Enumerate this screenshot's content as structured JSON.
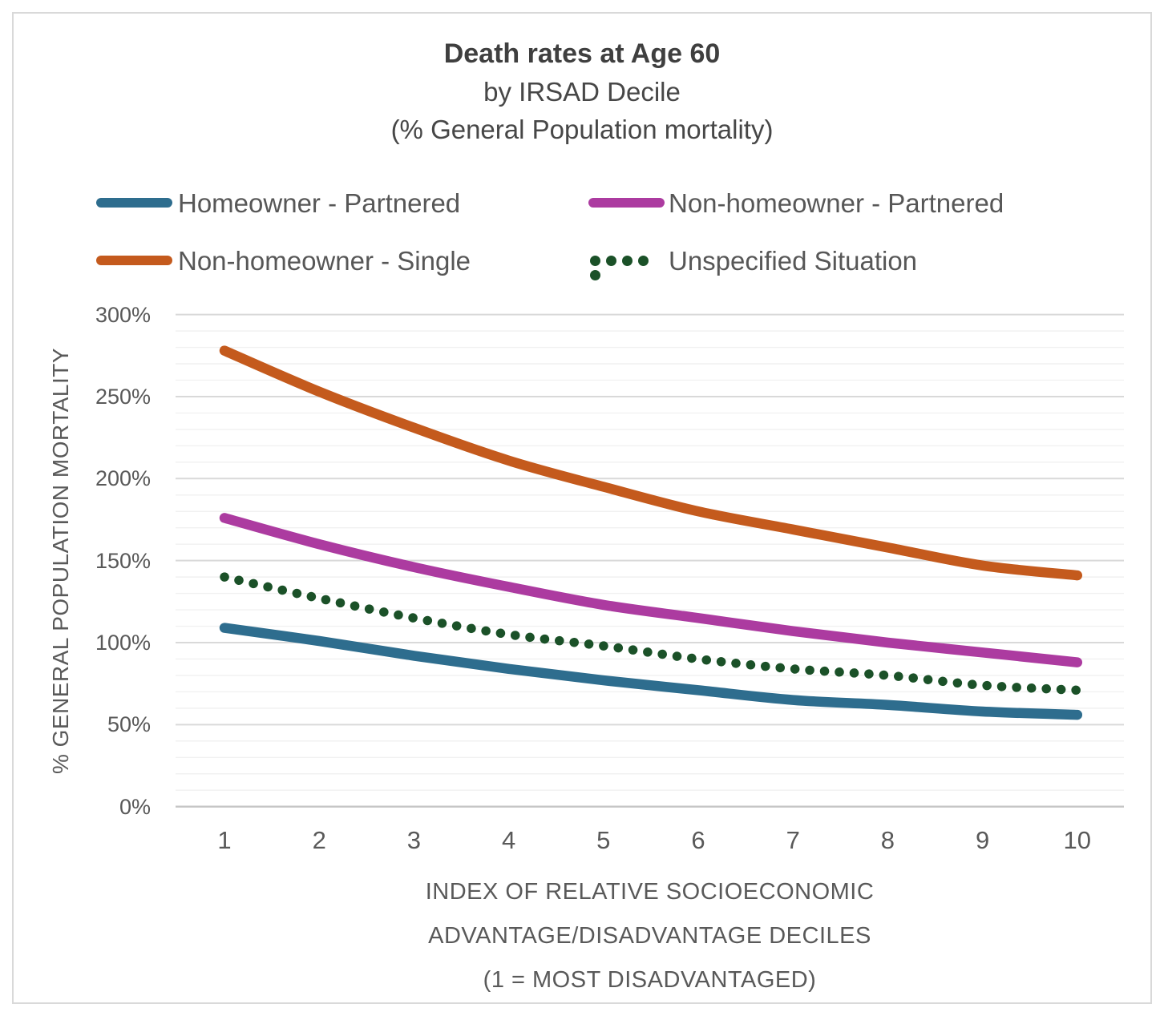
{
  "header": {
    "title": "Death rates at Age 60",
    "subtitle1": "by IRSAD Decile",
    "subtitle2": "(% General Population mortality)"
  },
  "legend": {
    "items": [
      {
        "label": "Homeowner - Partnered",
        "color": "#2E6D8E",
        "style": "solid"
      },
      {
        "label": "Non-homeowner - Partnered",
        "color": "#AC3BA0",
        "style": "solid"
      },
      {
        "label": "Non-homeowner - Single",
        "color": "#C45A1D",
        "style": "solid"
      },
      {
        "label": "Unspecified Situation",
        "color": "#1B5128",
        "style": "dotted"
      }
    ]
  },
  "y_axis_title": "% GENERAL POPULATION MORTALITY",
  "x_axis_title_lines": [
    "INDEX OF RELATIVE SOCIOECONOMIC",
    "ADVANTAGE/DISADVANTAGE DECILES",
    "(1 = MOST DISADVANTAGED)"
  ],
  "chart_data": {
    "type": "line",
    "title": "Death rates at Age 60 by IRSAD Decile (% General Population mortality)",
    "xlabel": "INDEX OF RELATIVE SOCIOECONOMIC ADVANTAGE/DISADVANTAGE DECILES (1 = MOST DISADVANTAGED)",
    "ylabel": "% GENERAL POPULATION MORTALITY",
    "x": [
      1,
      2,
      3,
      4,
      5,
      6,
      7,
      8,
      9,
      10
    ],
    "x_tick_labels": [
      "1",
      "2",
      "3",
      "4",
      "5",
      "6",
      "7",
      "8",
      "9",
      "10"
    ],
    "ylim": [
      0,
      300
    ],
    "y_unit": "percent",
    "y_major_step": 50,
    "y_minor_step": 10,
    "y_tick_labels": [
      "0%",
      "50%",
      "100%",
      "150%",
      "200%",
      "250%",
      "300%"
    ],
    "grid": true,
    "legend_position": "top",
    "line_shape": "smoothed",
    "series": [
      {
        "name": "Homeowner - Partnered",
        "color": "#2E6D8E",
        "style": "solid",
        "values": [
          109,
          101,
          92,
          84,
          77,
          71,
          65,
          62,
          58,
          56
        ]
      },
      {
        "name": "Non-homeowner - Partnered",
        "color": "#AC3BA0",
        "style": "solid",
        "values": [
          176,
          160,
          146,
          134,
          123,
          115,
          107,
          100,
          94,
          88
        ]
      },
      {
        "name": "Non-homeowner - Single",
        "color": "#C45A1D",
        "style": "solid",
        "values": [
          278,
          253,
          231,
          211,
          195,
          180,
          169,
          158,
          147,
          141
        ]
      },
      {
        "name": "Unspecified Situation",
        "color": "#1B5128",
        "style": "dotted",
        "values": [
          140,
          127,
          115,
          105,
          98,
          90,
          84,
          80,
          74,
          71
        ]
      }
    ],
    "colors": {
      "major_grid": "#D9D9D9",
      "minor_grid": "#F1F1F1",
      "zero_axis": "#C6C6C6",
      "frame_border": "#D9D9D9"
    }
  }
}
